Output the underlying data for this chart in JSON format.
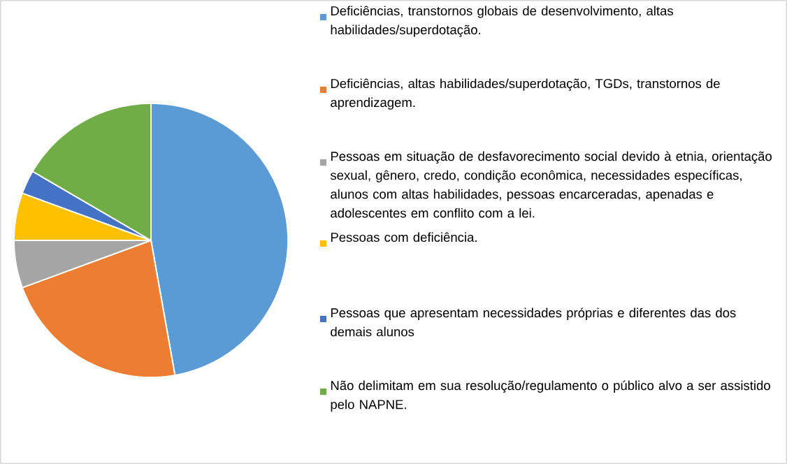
{
  "chart_data": {
    "type": "pie",
    "categories": [
      "Deficiências, transtornos globais de desenvolvimento, altas habilidades/superdotação.",
      "Deficiências, altas habilidades/superdotação, TGDs, transtornos de aprendizagem.",
      "Pessoas em situação de desfavorecimento social devido à etnia, orientação sexual, gênero, credo, condição econômica, necessidades específicas, alunos com altas habilidades, pessoas encarceradas, apenadas e adolescentes em conflito com a lei.",
      "Pessoas com deficiência.",
      "Pessoas que apresentam necessidades próprias e diferentes das dos demais alunos",
      "Não delimitam em sua resolução/regulamento o público alvo a ser assistido pelo NAPNE."
    ],
    "values": [
      47.2,
      22.2,
      5.6,
      5.6,
      2.8,
      16.6
    ],
    "colors": [
      "#5b9bd5",
      "#ed7d31",
      "#a5a5a5",
      "#ffc000",
      "#4472c4",
      "#70ad47"
    ],
    "legend": "right"
  }
}
